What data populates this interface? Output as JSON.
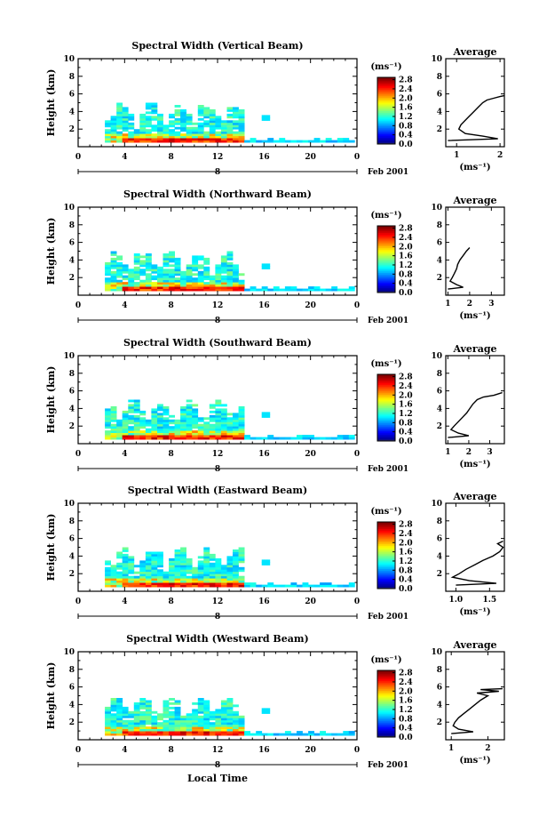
{
  "figure": {
    "x_axis_label": "Local Time",
    "date_label": "Feb 2001",
    "date_marker_label": "8",
    "y_axis_label": "Height (km)",
    "average_title": "Average",
    "colorbar_unit": "(ms⁻¹)",
    "avg_xunit": "(ms⁻¹)"
  },
  "chart_data": [
    {
      "type": "heatmap",
      "title": "Spectral Width (Vertical Beam)",
      "xlabel": "Local Time",
      "ylabel": "Height (km)",
      "xlim": [
        0,
        24
      ],
      "ylim": [
        0,
        10
      ],
      "xticks": [
        "0",
        "4",
        "8",
        "12",
        "16",
        "20",
        "0"
      ],
      "yticks": [
        "2",
        "4",
        "6",
        "8",
        "10"
      ],
      "colorbar": {
        "ticks": [
          "0.0",
          "0.4",
          "0.8",
          "1.2",
          "1.6",
          "2.0",
          "2.4",
          "2.8"
        ],
        "range": [
          0,
          2.9
        ]
      },
      "average": {
        "xticks": [
          "1",
          "2"
        ],
        "xlim": [
          0.75,
          2.1
        ],
        "yticks": [
          "2",
          "4",
          "6",
          "8",
          "10"
        ],
        "profile": [
          [
            0.8,
            0.7
          ],
          [
            1.95,
            0.9
          ],
          [
            1.6,
            1.2
          ],
          [
            1.2,
            1.5
          ],
          [
            1.05,
            2.0
          ],
          [
            1.1,
            2.5
          ],
          [
            1.2,
            3.0
          ],
          [
            1.3,
            3.5
          ],
          [
            1.4,
            4.0
          ],
          [
            1.5,
            4.5
          ],
          [
            1.6,
            5.0
          ],
          [
            1.7,
            5.3
          ],
          [
            1.85,
            5.5
          ],
          [
            2.0,
            5.7
          ],
          [
            2.1,
            5.8
          ]
        ]
      }
    },
    {
      "type": "heatmap",
      "title": "Spectral Width (Northward Beam)",
      "xlabel": "Local Time",
      "ylabel": "Height (km)",
      "xlim": [
        0,
        24
      ],
      "ylim": [
        0,
        10
      ],
      "xticks": [
        "0",
        "4",
        "8",
        "12",
        "16",
        "20",
        "0"
      ],
      "yticks": [
        "2",
        "4",
        "6",
        "8",
        "10"
      ],
      "colorbar": {
        "ticks": [
          "0.0",
          "0.4",
          "0.8",
          "1.2",
          "1.6",
          "2.0",
          "2.4",
          "2.8"
        ],
        "range": [
          0,
          2.9
        ]
      },
      "average": {
        "xticks": [
          "1",
          "2",
          "3"
        ],
        "xlim": [
          0.9,
          3.6
        ],
        "yticks": [
          "2",
          "4",
          "6",
          "8",
          "10"
        ],
        "profile": [
          [
            1.0,
            0.7
          ],
          [
            1.7,
            0.9
          ],
          [
            1.4,
            1.2
          ],
          [
            1.1,
            1.6
          ],
          [
            1.2,
            2.0
          ],
          [
            1.3,
            2.5
          ],
          [
            1.4,
            3.0
          ],
          [
            1.45,
            3.5
          ],
          [
            1.55,
            4.0
          ],
          [
            1.7,
            4.5
          ],
          [
            1.85,
            5.0
          ],
          [
            2.0,
            5.4
          ]
        ]
      }
    },
    {
      "type": "heatmap",
      "title": "Spectral Width (Southward Beam)",
      "xlabel": "Local Time",
      "ylabel": "Height (km)",
      "xlim": [
        0,
        24
      ],
      "ylim": [
        0,
        10
      ],
      "xticks": [
        "0",
        "4",
        "8",
        "12",
        "16",
        "20",
        "0"
      ],
      "yticks": [
        "2",
        "4",
        "6",
        "8",
        "10"
      ],
      "colorbar": {
        "ticks": [
          "0.0",
          "0.4",
          "0.8",
          "1.2",
          "1.6",
          "2.0",
          "2.4",
          "2.8"
        ],
        "range": [
          0,
          2.9
        ]
      },
      "average": {
        "xticks": [
          "1",
          "2",
          "3"
        ],
        "xlim": [
          0.9,
          3.7
        ],
        "yticks": [
          "2",
          "4",
          "6",
          "8",
          "10"
        ],
        "profile": [
          [
            1.0,
            0.7
          ],
          [
            2.0,
            0.9
          ],
          [
            1.5,
            1.2
          ],
          [
            1.15,
            1.6
          ],
          [
            1.3,
            2.0
          ],
          [
            1.5,
            2.5
          ],
          [
            1.7,
            3.0
          ],
          [
            1.9,
            3.5
          ],
          [
            2.05,
            4.0
          ],
          [
            2.2,
            4.5
          ],
          [
            2.4,
            5.0
          ],
          [
            2.7,
            5.3
          ],
          [
            3.2,
            5.5
          ],
          [
            3.6,
            5.8
          ]
        ]
      }
    },
    {
      "type": "heatmap",
      "title": "Spectral Width (Eastward Beam)",
      "xlabel": "Local Time",
      "ylabel": "Height (km)",
      "xlim": [
        0,
        24
      ],
      "ylim": [
        0,
        10
      ],
      "xticks": [
        "0",
        "4",
        "8",
        "12",
        "16",
        "20",
        "0"
      ],
      "yticks": [
        "2",
        "4",
        "6",
        "8",
        "10"
      ],
      "colorbar": {
        "ticks": [
          "0.0",
          "0.4",
          "0.8",
          "1.2",
          "1.6",
          "2.0",
          "2.4",
          "2.8"
        ],
        "range": [
          0,
          2.9
        ]
      },
      "average": {
        "xticks": [
          "1.0",
          "1.5"
        ],
        "xlim": [
          0.85,
          1.72
        ],
        "yticks": [
          "2",
          "4",
          "6",
          "8",
          "10"
        ],
        "profile": [
          [
            1.0,
            0.7
          ],
          [
            1.6,
            0.9
          ],
          [
            1.2,
            1.2
          ],
          [
            0.95,
            1.6
          ],
          [
            1.05,
            2.0
          ],
          [
            1.15,
            2.5
          ],
          [
            1.28,
            3.0
          ],
          [
            1.4,
            3.5
          ],
          [
            1.55,
            4.0
          ],
          [
            1.65,
            4.5
          ],
          [
            1.7,
            5.0
          ],
          [
            1.62,
            5.4
          ],
          [
            1.7,
            5.7
          ]
        ]
      }
    },
    {
      "type": "heatmap",
      "title": "Spectral Width (Westward Beam)",
      "xlabel": "Local Time",
      "ylabel": "Height (km)",
      "xlim": [
        0,
        24
      ],
      "ylim": [
        0,
        10
      ],
      "xticks": [
        "0",
        "4",
        "8",
        "12",
        "16",
        "20",
        "0"
      ],
      "yticks": [
        "2",
        "4",
        "6",
        "8",
        "10"
      ],
      "colorbar": {
        "ticks": [
          "0.0",
          "0.4",
          "0.8",
          "1.2",
          "1.6",
          "2.0",
          "2.4",
          "2.8"
        ],
        "range": [
          0,
          2.9
        ]
      },
      "average": {
        "xticks": [
          "1",
          "2"
        ],
        "xlim": [
          0.85,
          2.45
        ],
        "yticks": [
          "2",
          "4",
          "6",
          "8",
          "10"
        ],
        "profile": [
          [
            1.0,
            0.7
          ],
          [
            1.6,
            0.9
          ],
          [
            1.2,
            1.2
          ],
          [
            1.05,
            1.6
          ],
          [
            1.1,
            2.0
          ],
          [
            1.2,
            2.5
          ],
          [
            1.35,
            3.0
          ],
          [
            1.5,
            3.5
          ],
          [
            1.65,
            4.0
          ],
          [
            1.8,
            4.5
          ],
          [
            2.0,
            5.0
          ],
          [
            1.7,
            5.3
          ],
          [
            2.3,
            5.5
          ],
          [
            1.8,
            5.7
          ],
          [
            2.4,
            5.8
          ]
        ]
      }
    }
  ]
}
